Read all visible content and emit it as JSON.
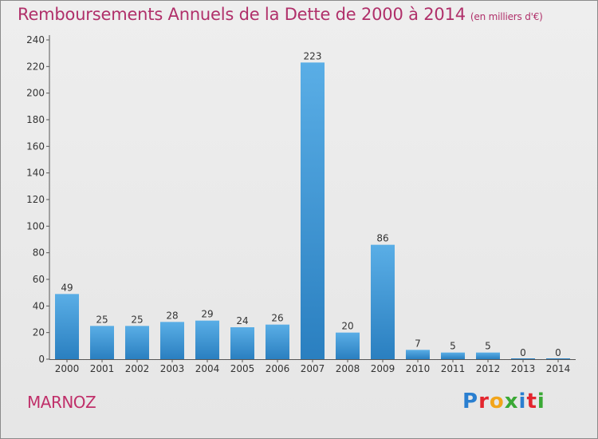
{
  "header": {
    "title": "Remboursements Annuels de la Dette de 2000 à 2014",
    "unit": "(en milliers d'€)"
  },
  "footer": {
    "place": "MARNOZ",
    "logo_letters": [
      "P",
      "r",
      "o",
      "x",
      "i",
      "t",
      "i"
    ]
  },
  "colors": {
    "title": "#b0306a",
    "bar_top": "#5aaee6",
    "bar_bottom": "#2a7fc0",
    "axis": "#555555"
  },
  "chart_data": {
    "type": "bar",
    "title": "Remboursements Annuels de la Dette de 2000 à 2014",
    "xlabel": "",
    "ylabel": "",
    "categories": [
      "2000",
      "2001",
      "2002",
      "2003",
      "2004",
      "2005",
      "2006",
      "2007",
      "2008",
      "2009",
      "2010",
      "2011",
      "2012",
      "2013",
      "2014"
    ],
    "values": [
      49,
      25,
      25,
      28,
      29,
      24,
      26,
      223,
      20,
      86,
      7,
      5,
      5,
      0,
      0
    ],
    "ylim": [
      0,
      240
    ],
    "yticks": [
      0,
      20,
      40,
      60,
      80,
      100,
      120,
      140,
      160,
      180,
      200,
      220,
      240
    ],
    "grid": false,
    "data_labels": true
  }
}
